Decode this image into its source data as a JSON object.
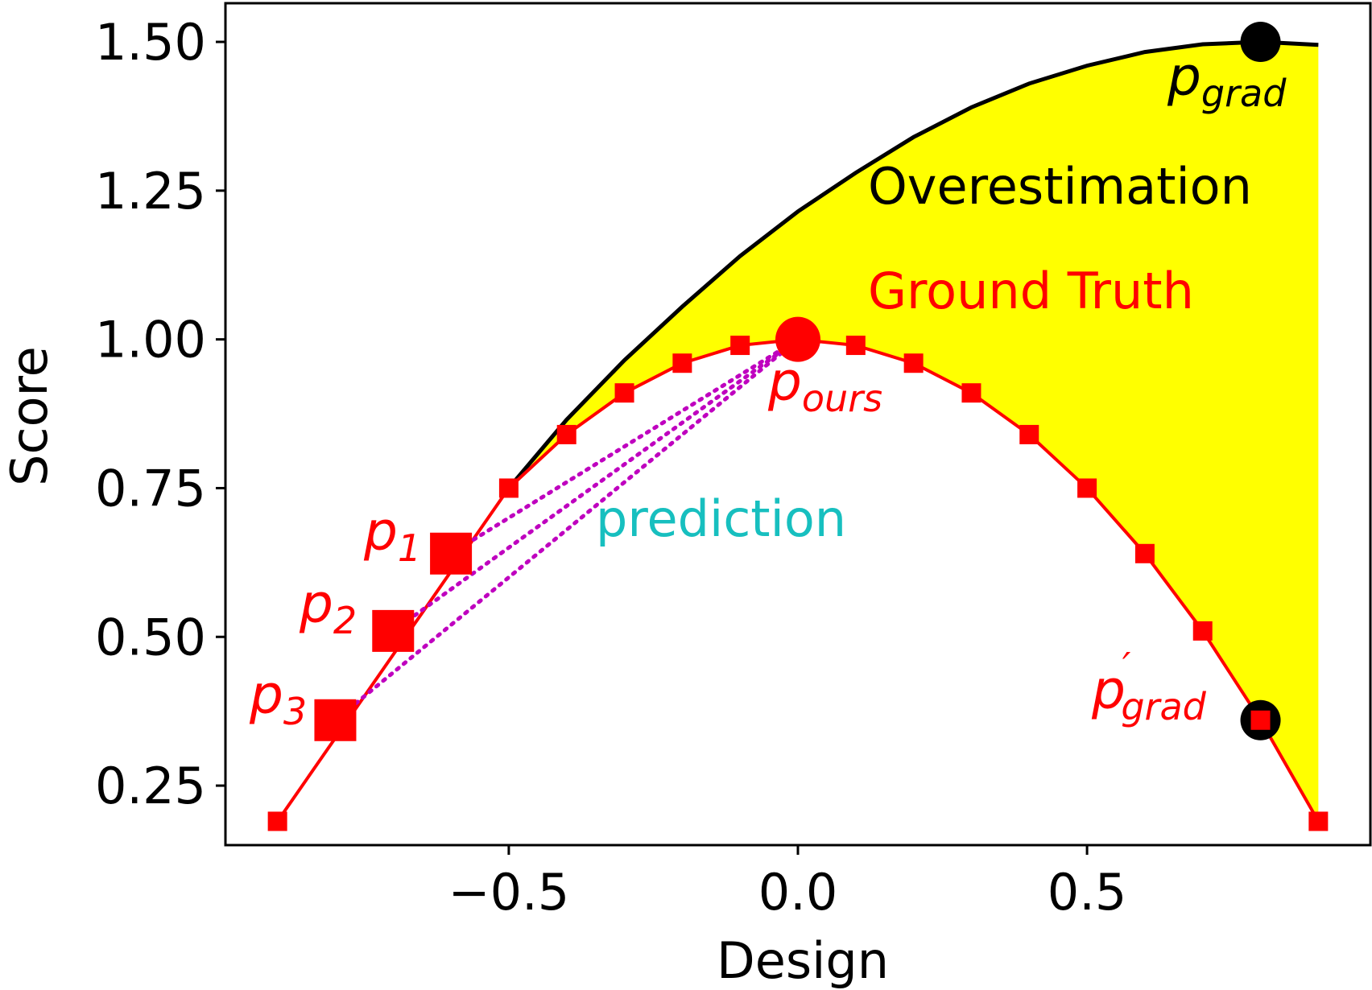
{
  "chart_data": {
    "type": "line",
    "xlabel": "Design",
    "ylabel": "Score",
    "xlim": [
      -0.99,
      0.99
    ],
    "ylim": [
      0.15,
      1.565
    ],
    "x_ticks": [
      -0.5,
      0.0,
      0.5
    ],
    "x_tick_labels": [
      "−0.5",
      "0.0",
      "0.5"
    ],
    "y_ticks": [
      0.25,
      0.5,
      0.75,
      1.0,
      1.25,
      1.5
    ],
    "y_tick_labels": [
      "0.25",
      "0.50",
      "0.75",
      "1.00",
      "1.25",
      "1.50"
    ],
    "grid": false,
    "colors": {
      "ground_truth": "#ff0000",
      "overestimation_line": "#000000",
      "fill": "#ffff00",
      "prediction_dots": "#bf00bf",
      "prediction_text": "#17bfbf"
    },
    "series": [
      {
        "name": "Ground Truth",
        "x": [
          -0.9,
          -0.5,
          -0.4,
          -0.3,
          -0.2,
          -0.1,
          0.1,
          0.2,
          0.3,
          0.4,
          0.5,
          0.6,
          0.7,
          0.8,
          0.9
        ],
        "y": [
          0.19,
          0.75,
          0.84,
          0.91,
          0.96,
          0.99,
          0.99,
          0.96,
          0.91,
          0.84,
          0.75,
          0.64,
          0.51,
          0.36,
          0.19
        ]
      },
      {
        "name": "Overestimation",
        "x": [
          -0.5,
          -0.4,
          -0.3,
          -0.2,
          -0.1,
          0.0,
          0.1,
          0.2,
          0.3,
          0.4,
          0.5,
          0.6,
          0.7,
          0.8,
          0.9
        ],
        "y": [
          0.75,
          0.865,
          0.965,
          1.055,
          1.14,
          1.215,
          1.28,
          1.34,
          1.39,
          1.43,
          1.46,
          1.483,
          1.496,
          1.5,
          1.495
        ]
      }
    ],
    "points": {
      "p1": {
        "x": -0.6,
        "y": 0.64
      },
      "p2": {
        "x": -0.7,
        "y": 0.51
      },
      "p3": {
        "x": -0.8,
        "y": 0.36
      },
      "p_ours": {
        "x": 0.0,
        "y": 1.0
      },
      "p_grad": {
        "x": 0.8,
        "y": 1.5
      },
      "p_grad_prime": {
        "x": 0.8,
        "y": 0.36
      }
    },
    "annotations": {
      "overestimation": "Overestimation",
      "ground_truth": "Ground Truth",
      "prediction": "prediction",
      "p1": {
        "base": "p",
        "sub": "1"
      },
      "p2": {
        "base": "p",
        "sub": "2"
      },
      "p3": {
        "base": "p",
        "sub": "3"
      },
      "p_ours": {
        "base": "p",
        "sub": "ours"
      },
      "p_grad": {
        "base": "p",
        "sub": "grad"
      },
      "p_grad_prime": {
        "base": "p",
        "sub": "grad",
        "sup": "′"
      }
    }
  }
}
